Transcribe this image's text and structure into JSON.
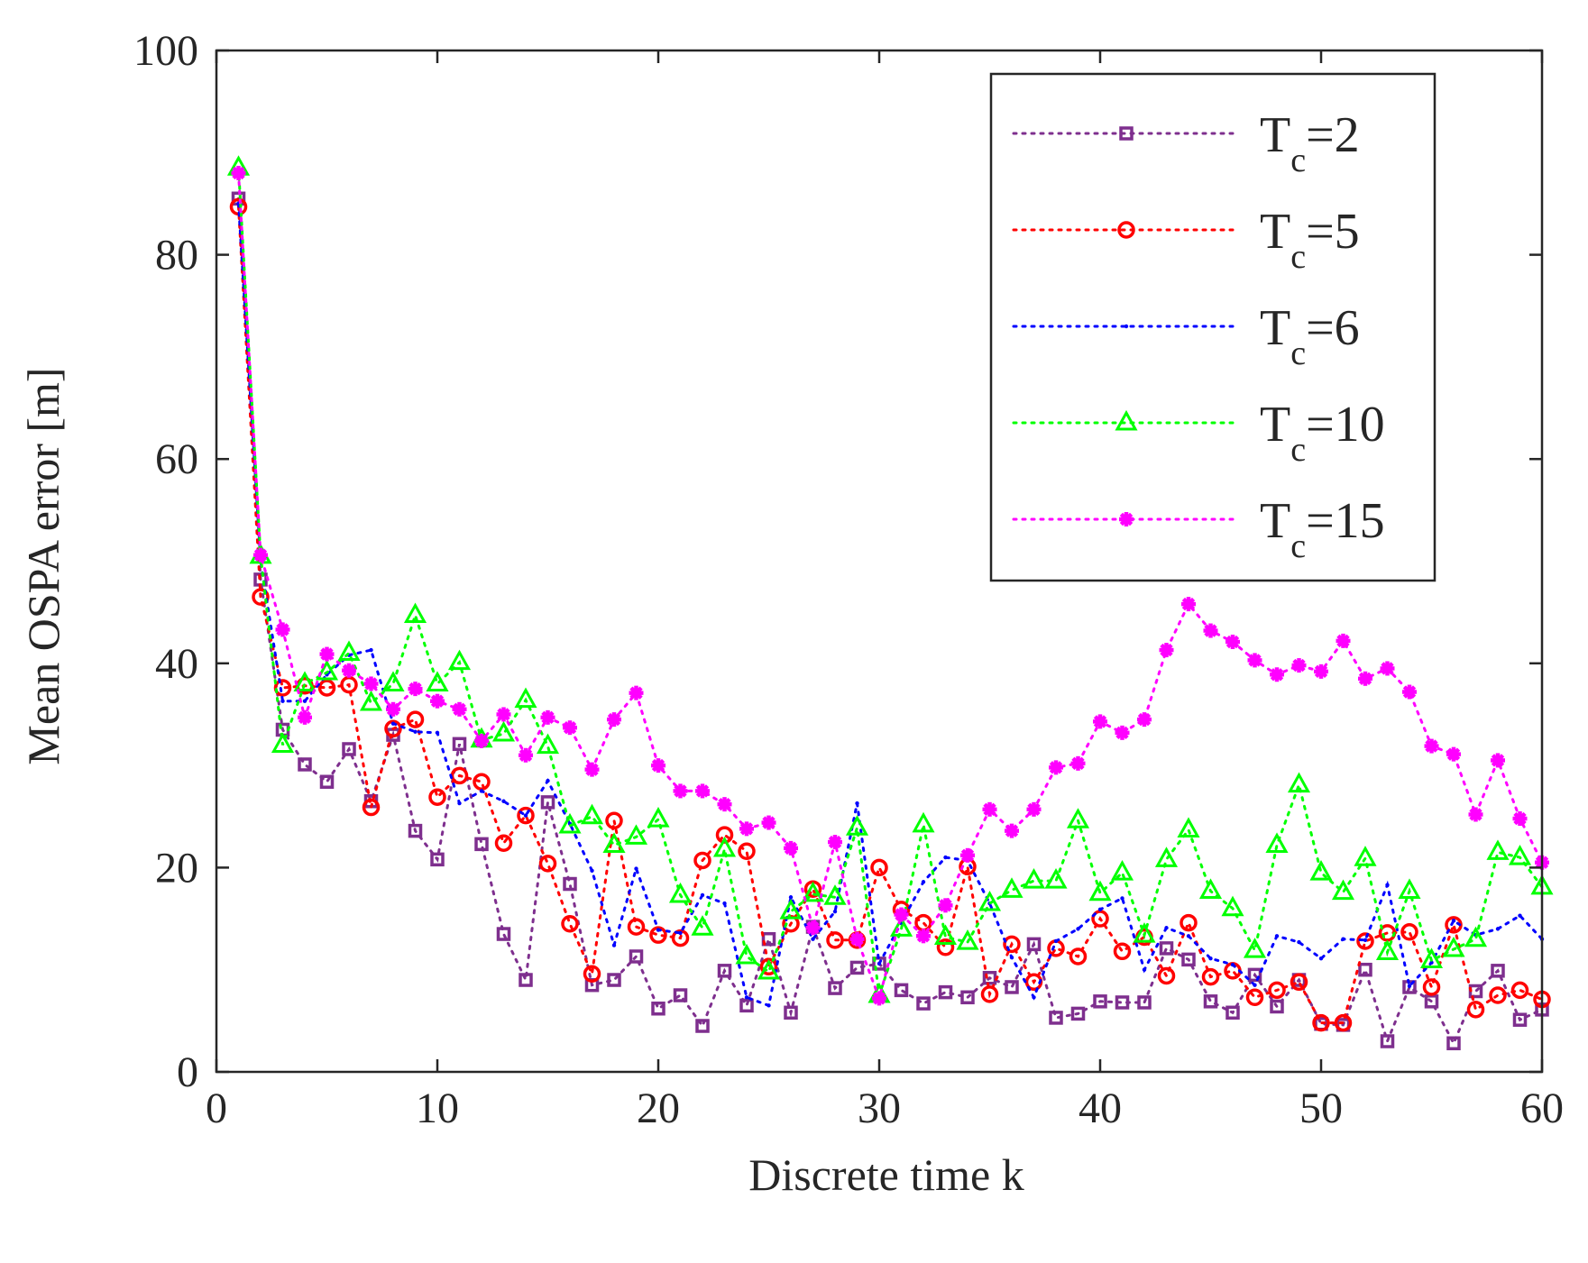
{
  "chart_data": {
    "type": "line",
    "title": "",
    "xlabel": "Discrete time k",
    "ylabel": "Mean OSPA error [m]",
    "xlim": [
      0,
      60
    ],
    "ylim": [
      0,
      100
    ],
    "xticks": [
      0,
      10,
      20,
      30,
      40,
      50,
      60
    ],
    "yticks": [
      0,
      20,
      40,
      60,
      80,
      100
    ],
    "grid": false,
    "legend_position": "top-right",
    "x": [
      1,
      2,
      3,
      4,
      5,
      6,
      7,
      8,
      9,
      10,
      11,
      12,
      13,
      14,
      15,
      16,
      17,
      18,
      19,
      20,
      21,
      22,
      23,
      24,
      25,
      26,
      27,
      28,
      29,
      30,
      31,
      32,
      33,
      34,
      35,
      36,
      37,
      38,
      39,
      40,
      41,
      42,
      43,
      44,
      45,
      46,
      47,
      48,
      49,
      50,
      51,
      52,
      53,
      54,
      55,
      56,
      57,
      58,
      59,
      60
    ],
    "series": [
      {
        "name": "Tc=2",
        "label_main": "T",
        "label_sub": "c",
        "label_value": "=2",
        "color": "#7e2f8e",
        "marker": "square",
        "line_style": "dotted",
        "values": [
          85.5,
          48.2,
          33.5,
          30.1,
          28.4,
          31.6,
          26.5,
          33.0,
          23.6,
          20.8,
          32.1,
          22.3,
          13.5,
          9.0,
          26.4,
          18.4,
          8.5,
          9.0,
          11.3,
          6.2,
          7.5,
          4.5,
          9.9,
          6.5,
          13.0,
          5.8,
          14.2,
          8.2,
          10.2,
          10.6,
          8.0,
          6.7,
          7.8,
          7.3,
          9.2,
          8.3,
          12.5,
          5.3,
          5.7,
          6.9,
          6.8,
          6.8,
          12.1,
          11.0,
          6.9,
          5.8,
          9.5,
          6.4,
          9.0,
          4.7,
          4.6,
          10.0,
          3.0,
          8.3,
          6.9,
          2.8,
          7.9,
          9.9,
          5.1,
          6.1
        ]
      },
      {
        "name": "Tc=5",
        "label_main": "T",
        "label_sub": "c",
        "label_value": "=5",
        "color": "#ff0000",
        "marker": "circle",
        "line_style": "dotted",
        "values": [
          84.7,
          46.5,
          37.6,
          37.8,
          37.6,
          37.9,
          25.9,
          33.6,
          34.5,
          26.9,
          29.0,
          28.4,
          22.4,
          25.1,
          20.4,
          14.5,
          9.6,
          24.6,
          14.2,
          13.4,
          13.1,
          20.7,
          23.2,
          21.6,
          10.3,
          14.5,
          17.9,
          12.9,
          12.9,
          20.0,
          15.9,
          14.6,
          12.2,
          20.1,
          7.6,
          12.5,
          8.8,
          12.1,
          11.3,
          15.0,
          11.8,
          13.2,
          9.4,
          14.6,
          9.3,
          9.9,
          7.3,
          8.0,
          8.8,
          4.8,
          4.8,
          12.8,
          13.6,
          13.7,
          8.3,
          14.4,
          6.1,
          7.5,
          8.0,
          7.1
        ]
      },
      {
        "name": "Tc=6",
        "label_main": "T",
        "label_sub": "c",
        "label_value": "=6",
        "color": "#0000ff",
        "marker": "dot",
        "line_style": "dotted",
        "values": [
          85.0,
          50.0,
          36.3,
          36.3,
          38.9,
          40.8,
          41.3,
          34.1,
          33.3,
          33.2,
          26.3,
          27.5,
          26.5,
          25.1,
          28.5,
          24.3,
          19.7,
          12.4,
          19.9,
          13.9,
          13.6,
          17.3,
          16.5,
          7.3,
          6.5,
          17.1,
          13.0,
          15.7,
          26.3,
          10.6,
          14.6,
          18.6,
          21.0,
          20.7,
          16.5,
          11.2,
          7.3,
          12.8,
          14.0,
          15.9,
          17.0,
          10.0,
          14.1,
          13.3,
          11.1,
          10.5,
          8.5,
          13.3,
          12.7,
          11.1,
          13.0,
          12.9,
          18.3,
          8.4,
          10.7,
          14.8,
          13.4,
          14.0,
          15.3,
          13.0
        ]
      },
      {
        "name": "Tc=10",
        "label_main": "T",
        "label_sub": "c",
        "label_value": "=10",
        "color": "#00ff00",
        "marker": "triangle",
        "line_style": "dotted",
        "values": [
          88.5,
          50.5,
          32.0,
          38.0,
          39.1,
          41.0,
          36.1,
          38.0,
          44.7,
          38.0,
          40.1,
          32.5,
          33.1,
          36.4,
          31.9,
          24.1,
          25.0,
          22.2,
          23.0,
          24.7,
          17.3,
          14.1,
          21.8,
          11.3,
          9.8,
          15.7,
          17.4,
          17.1,
          23.9,
          7.5,
          14.0,
          24.2,
          13.2,
          12.7,
          16.5,
          17.8,
          18.7,
          18.7,
          24.6,
          17.5,
          19.5,
          13.4,
          20.8,
          23.7,
          17.7,
          16.0,
          11.9,
          22.2,
          28.1,
          19.5,
          17.6,
          20.9,
          11.7,
          17.7,
          10.9,
          12.0,
          13.0,
          21.5,
          21.0,
          18.1
        ]
      },
      {
        "name": "Tc=15",
        "label_main": "T",
        "label_sub": "c",
        "label_value": "=15",
        "color": "#ff00ff",
        "marker": "asterisk",
        "line_style": "dotted",
        "values": [
          88.0,
          50.6,
          43.3,
          34.7,
          40.9,
          39.3,
          38.0,
          35.5,
          37.5,
          36.3,
          35.5,
          32.4,
          35.0,
          31.0,
          34.7,
          33.7,
          29.6,
          34.5,
          37.1,
          30.0,
          27.5,
          27.5,
          26.2,
          23.8,
          24.4,
          21.9,
          14.1,
          22.5,
          13.0,
          7.2,
          15.4,
          13.3,
          16.3,
          21.2,
          25.7,
          23.6,
          25.7,
          29.8,
          30.2,
          34.3,
          33.2,
          34.5,
          41.3,
          45.8,
          43.2,
          42.1,
          40.3,
          38.9,
          39.8,
          39.2,
          42.2,
          38.5,
          39.5,
          37.2,
          31.9,
          31.1,
          25.2,
          30.5,
          24.8,
          20.5
        ]
      }
    ]
  }
}
